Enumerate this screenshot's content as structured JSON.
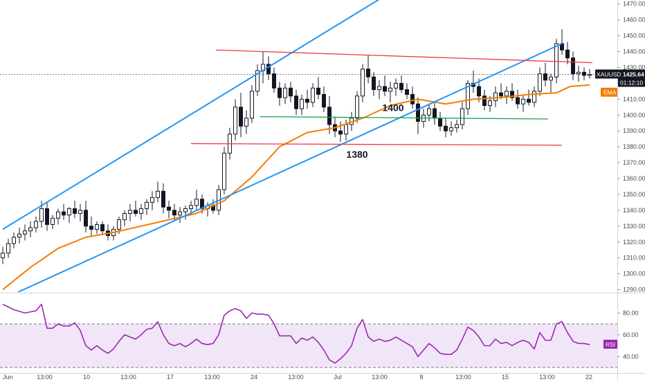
{
  "chart_data": [
    {
      "type": "candlestick",
      "name": "",
      "symbol": "XAUUSD",
      "last_price": "1425.64",
      "countdown": "01:12:10",
      "ema_label": "EMA",
      "x_ticks": [
        "Jun",
        "13:00",
        "10",
        "13:00",
        "17",
        "13:00",
        "24",
        "13:00",
        "Jul",
        "13:00",
        "8",
        "13:00",
        "15",
        "13:00",
        "22"
      ],
      "y_ticks": [
        "1470.00",
        "1460.00",
        "1450.00",
        "1440.00",
        "1430.00",
        "1420.00",
        "1410.00",
        "1400.00",
        "1390.00",
        "1380.00",
        "1370.00",
        "1360.00",
        "1350.00",
        "1340.00",
        "1330.00",
        "1320.00",
        "1310.00",
        "1300.00",
        "1290.00"
      ],
      "ylim": [
        1288.5,
        1472.5
      ],
      "annotations": [
        {
          "text": "1400",
          "x": 141,
          "y": 1402.5
        },
        {
          "text": "1380",
          "x": 128,
          "y": 1373
        }
      ],
      "lines": [
        {
          "kind": "channel-upper",
          "color": "#2196f3",
          "x1": 0,
          "y1": 1328,
          "x2": 137,
          "y2": 1474
        },
        {
          "kind": "channel-lower",
          "color": "#2196f3",
          "x1": 5,
          "y1": 1288,
          "x2": 202,
          "y2": 1445
        },
        {
          "kind": "resistance-sloped",
          "color": "#f23645",
          "x1": 77,
          "y1": 1441,
          "x2": 213,
          "y2": 1433
        },
        {
          "kind": "support-1400",
          "color": "#16a34a",
          "x1": 93,
          "y1": 1399,
          "x2": 197,
          "y2": 1397.5
        },
        {
          "kind": "support-1380",
          "color": "#f23645",
          "x1": 68,
          "y1": 1382,
          "x2": 202,
          "y2": 1381
        }
      ],
      "ema": [
        [
          0,
          1290
        ],
        [
          10,
          1304
        ],
        [
          20,
          1316
        ],
        [
          30,
          1323
        ],
        [
          40,
          1326
        ],
        [
          50,
          1330
        ],
        [
          60,
          1334
        ],
        [
          70,
          1338
        ],
        [
          80,
          1346
        ],
        [
          90,
          1361
        ],
        [
          100,
          1380
        ],
        [
          110,
          1389
        ],
        [
          120,
          1392
        ],
        [
          130,
          1398
        ],
        [
          140,
          1406
        ],
        [
          150,
          1410
        ],
        [
          160,
          1407
        ],
        [
          170,
          1410
        ],
        [
          180,
          1411
        ],
        [
          190,
          1413
        ],
        [
          200,
          1414
        ],
        [
          205,
          1418
        ],
        [
          212,
          1419
        ]
      ],
      "candles": [
        [
          0,
          1310,
          1317,
          1306,
          1313
        ],
        [
          2,
          1313,
          1322,
          1310,
          1319
        ],
        [
          4,
          1319,
          1326,
          1316,
          1323
        ],
        [
          6,
          1323,
          1329,
          1319,
          1325
        ],
        [
          8,
          1325,
          1331,
          1321,
          1327
        ],
        [
          10,
          1327,
          1333,
          1323,
          1329
        ],
        [
          12,
          1329,
          1336,
          1326,
          1333
        ],
        [
          14,
          1333,
          1346,
          1329,
          1341
        ],
        [
          16,
          1341,
          1345,
          1327,
          1331
        ],
        [
          18,
          1331,
          1337,
          1328,
          1335
        ],
        [
          20,
          1335,
          1341,
          1331,
          1339
        ],
        [
          22,
          1339,
          1344,
          1334,
          1337
        ],
        [
          24,
          1337,
          1342,
          1332,
          1341
        ],
        [
          26,
          1341,
          1346,
          1335,
          1338
        ],
        [
          28,
          1338,
          1344,
          1333,
          1340
        ],
        [
          30,
          1340,
          1346,
          1326,
          1330
        ],
        [
          32,
          1330,
          1336,
          1324,
          1328
        ],
        [
          34,
          1328,
          1333,
          1325,
          1331
        ],
        [
          36,
          1331,
          1333,
          1325,
          1327
        ],
        [
          38,
          1327,
          1331,
          1321,
          1324
        ],
        [
          40,
          1324,
          1330,
          1321,
          1328
        ],
        [
          42,
          1328,
          1336,
          1325,
          1334
        ],
        [
          44,
          1334,
          1340,
          1330,
          1338
        ],
        [
          46,
          1338,
          1344,
          1333,
          1340
        ],
        [
          48,
          1340,
          1346,
          1336,
          1338
        ],
        [
          50,
          1338,
          1344,
          1334,
          1341
        ],
        [
          52,
          1341,
          1347,
          1337,
          1345
        ],
        [
          54,
          1345,
          1352,
          1340,
          1348
        ],
        [
          56,
          1348,
          1358,
          1345,
          1352
        ],
        [
          58,
          1352,
          1357,
          1338,
          1342
        ],
        [
          60,
          1342,
          1346,
          1335,
          1340
        ],
        [
          62,
          1340,
          1344,
          1333,
          1337
        ],
        [
          64,
          1337,
          1342,
          1332,
          1339
        ],
        [
          66,
          1339,
          1343,
          1334,
          1341
        ],
        [
          68,
          1341,
          1346,
          1337,
          1343
        ],
        [
          70,
          1343,
          1353,
          1340,
          1347
        ],
        [
          72,
          1347,
          1350,
          1338,
          1341
        ],
        [
          74,
          1341,
          1345,
          1336,
          1343
        ],
        [
          76,
          1343,
          1347,
          1338,
          1340
        ],
        [
          78,
          1340,
          1356,
          1337,
          1353
        ],
        [
          80,
          1353,
          1380,
          1350,
          1376
        ],
        [
          82,
          1376,
          1392,
          1372,
          1388
        ],
        [
          84,
          1388,
          1410,
          1384,
          1405
        ],
        [
          86,
          1405,
          1414,
          1386,
          1393
        ],
        [
          88,
          1393,
          1403,
          1388,
          1398
        ],
        [
          90,
          1398,
          1419,
          1395,
          1415
        ],
        [
          92,
          1415,
          1432,
          1412,
          1428
        ],
        [
          94,
          1428,
          1440,
          1420,
          1432
        ],
        [
          96,
          1432,
          1437,
          1422,
          1426
        ],
        [
          98,
          1426,
          1430,
          1414,
          1417
        ],
        [
          100,
          1417,
          1421,
          1406,
          1411
        ],
        [
          102,
          1411,
          1420,
          1407,
          1417
        ],
        [
          104,
          1417,
          1421,
          1408,
          1412
        ],
        [
          106,
          1412,
          1416,
          1400,
          1404
        ],
        [
          108,
          1404,
          1413,
          1400,
          1410
        ],
        [
          110,
          1410,
          1416,
          1404,
          1408
        ],
        [
          112,
          1408,
          1420,
          1405,
          1417
        ],
        [
          114,
          1417,
          1424,
          1410,
          1413
        ],
        [
          116,
          1413,
          1418,
          1402,
          1405
        ],
        [
          118,
          1405,
          1412,
          1388,
          1394
        ],
        [
          120,
          1394,
          1399,
          1386,
          1390
        ],
        [
          122,
          1390,
          1396,
          1383,
          1388
        ],
        [
          124,
          1388,
          1397,
          1384,
          1394
        ],
        [
          126,
          1394,
          1402,
          1390,
          1398
        ],
        [
          128,
          1398,
          1415,
          1395,
          1412
        ],
        [
          130,
          1412,
          1432,
          1408,
          1429
        ],
        [
          132,
          1429,
          1438,
          1420,
          1424
        ],
        [
          134,
          1424,
          1427,
          1412,
          1416
        ],
        [
          136,
          1416,
          1422,
          1410,
          1418
        ],
        [
          138,
          1418,
          1425,
          1412,
          1415
        ],
        [
          140,
          1415,
          1421,
          1408,
          1417
        ],
        [
          142,
          1417,
          1423,
          1412,
          1420
        ],
        [
          144,
          1420,
          1425,
          1414,
          1416
        ],
        [
          146,
          1416,
          1420,
          1410,
          1413
        ],
        [
          148,
          1413,
          1418,
          1404,
          1407
        ],
        [
          150,
          1407,
          1411,
          1388,
          1396
        ],
        [
          152,
          1396,
          1404,
          1392,
          1400
        ],
        [
          154,
          1400,
          1407,
          1396,
          1404
        ],
        [
          156,
          1404,
          1408,
          1394,
          1398
        ],
        [
          158,
          1398,
          1402,
          1390,
          1393
        ],
        [
          160,
          1393,
          1398,
          1386,
          1390
        ],
        [
          162,
          1390,
          1396,
          1387,
          1392
        ],
        [
          164,
          1392,
          1397,
          1389,
          1394
        ],
        [
          166,
          1394,
          1408,
          1391,
          1404
        ],
        [
          168,
          1404,
          1422,
          1400,
          1420
        ],
        [
          170,
          1420,
          1428,
          1414,
          1418
        ],
        [
          172,
          1418,
          1423,
          1408,
          1412
        ],
        [
          174,
          1412,
          1416,
          1403,
          1406
        ],
        [
          176,
          1406,
          1412,
          1402,
          1409
        ],
        [
          178,
          1409,
          1418,
          1405,
          1414
        ],
        [
          180,
          1414,
          1420,
          1410,
          1412
        ],
        [
          182,
          1412,
          1418,
          1407,
          1415
        ],
        [
          184,
          1415,
          1420,
          1409,
          1411
        ],
        [
          186,
          1411,
          1416,
          1404,
          1407
        ],
        [
          188,
          1407,
          1413,
          1402,
          1410
        ],
        [
          190,
          1410,
          1416,
          1406,
          1408
        ],
        [
          192,
          1408,
          1418,
          1405,
          1415
        ],
        [
          194,
          1415,
          1430,
          1412,
          1426
        ],
        [
          196,
          1426,
          1433,
          1418,
          1422
        ],
        [
          198,
          1422,
          1426,
          1414,
          1424
        ],
        [
          200,
          1424,
          1448,
          1420,
          1445
        ],
        [
          202,
          1445,
          1454,
          1438,
          1441
        ],
        [
          204,
          1441,
          1446,
          1432,
          1436
        ],
        [
          206,
          1436,
          1440,
          1422,
          1426
        ],
        [
          208,
          1426,
          1431,
          1421,
          1427
        ],
        [
          210,
          1427,
          1430,
          1422,
          1425
        ],
        [
          212,
          1425,
          1429,
          1423,
          1425.64
        ]
      ]
    },
    {
      "type": "line",
      "name": "",
      "label": "RSI",
      "y_ticks": [
        "80.00",
        "60.00",
        "40.00"
      ],
      "ylim": [
        25,
        98
      ],
      "levels": [
        70,
        30
      ],
      "values": [
        [
          0,
          88
        ],
        [
          4,
          83
        ],
        [
          8,
          80
        ],
        [
          12,
          82
        ],
        [
          14,
          88
        ],
        [
          16,
          66
        ],
        [
          18,
          66
        ],
        [
          20,
          70
        ],
        [
          22,
          68
        ],
        [
          24,
          68
        ],
        [
          26,
          71
        ],
        [
          28,
          64
        ],
        [
          30,
          50
        ],
        [
          32,
          46
        ],
        [
          34,
          50
        ],
        [
          36,
          46
        ],
        [
          38,
          43
        ],
        [
          40,
          47
        ],
        [
          42,
          54
        ],
        [
          44,
          60
        ],
        [
          46,
          58
        ],
        [
          48,
          56
        ],
        [
          50,
          60
        ],
        [
          52,
          65
        ],
        [
          54,
          66
        ],
        [
          56,
          72
        ],
        [
          58,
          60
        ],
        [
          60,
          52
        ],
        [
          62,
          50
        ],
        [
          64,
          52
        ],
        [
          66,
          49
        ],
        [
          68,
          52
        ],
        [
          70,
          56
        ],
        [
          72,
          52
        ],
        [
          74,
          51
        ],
        [
          76,
          52
        ],
        [
          78,
          60
        ],
        [
          80,
          78
        ],
        [
          82,
          82
        ],
        [
          84,
          84
        ],
        [
          86,
          82
        ],
        [
          88,
          75
        ],
        [
          90,
          80
        ],
        [
          92,
          79
        ],
        [
          94,
          79
        ],
        [
          96,
          78
        ],
        [
          98,
          70
        ],
        [
          100,
          59
        ],
        [
          102,
          59
        ],
        [
          104,
          59
        ],
        [
          106,
          52
        ],
        [
          108,
          57
        ],
        [
          110,
          55
        ],
        [
          112,
          58
        ],
        [
          114,
          53
        ],
        [
          116,
          46
        ],
        [
          118,
          37
        ],
        [
          120,
          34
        ],
        [
          122,
          38
        ],
        [
          124,
          43
        ],
        [
          126,
          50
        ],
        [
          128,
          66
        ],
        [
          130,
          74
        ],
        [
          132,
          58
        ],
        [
          134,
          54
        ],
        [
          136,
          56
        ],
        [
          138,
          54
        ],
        [
          140,
          55
        ],
        [
          142,
          58
        ],
        [
          144,
          55
        ],
        [
          146,
          52
        ],
        [
          148,
          49
        ],
        [
          150,
          40
        ],
        [
          152,
          46
        ],
        [
          154,
          52
        ],
        [
          156,
          48
        ],
        [
          158,
          43
        ],
        [
          160,
          42
        ],
        [
          162,
          42
        ],
        [
          164,
          46
        ],
        [
          166,
          56
        ],
        [
          168,
          67
        ],
        [
          170,
          64
        ],
        [
          172,
          58
        ],
        [
          174,
          50
        ],
        [
          176,
          50
        ],
        [
          178,
          56
        ],
        [
          180,
          52
        ],
        [
          182,
          53
        ],
        [
          184,
          50
        ],
        [
          186,
          53
        ],
        [
          188,
          55
        ],
        [
          190,
          53
        ],
        [
          192,
          47
        ],
        [
          194,
          62
        ],
        [
          196,
          55
        ],
        [
          198,
          55
        ],
        [
          200,
          70
        ],
        [
          202,
          72
        ],
        [
          204,
          62
        ],
        [
          206,
          54
        ],
        [
          208,
          52
        ],
        [
          210,
          52
        ],
        [
          212,
          51
        ]
      ]
    }
  ]
}
